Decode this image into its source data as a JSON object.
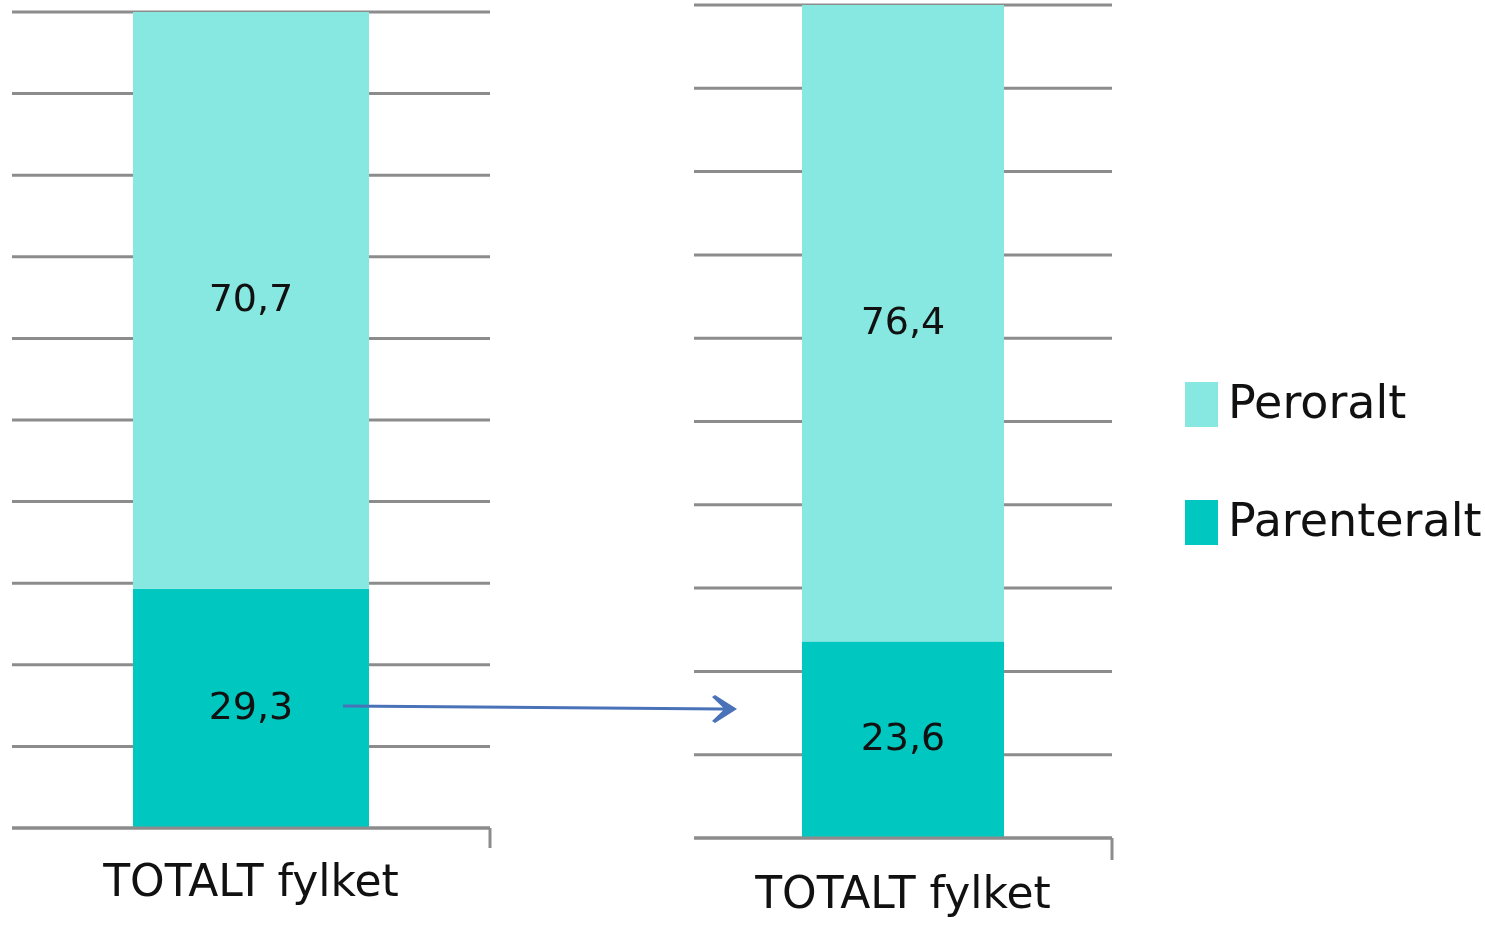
{
  "chart_data": [
    {
      "type": "bar",
      "stacked": true,
      "categories": [
        "TOTALT fylket"
      ],
      "series": [
        {
          "color": "#00c8c0",
          "values": [
            29.3
          ],
          "value_labels": [
            "29,3"
          ]
        },
        {
          "color": "#87e8e2",
          "values": [
            70.7
          ],
          "value_labels": [
            "70,7"
          ]
        }
      ],
      "grid": "y",
      "tick_labels": "x",
      "legend": false
    },
    {
      "type": "bar",
      "stacked": true,
      "categories": [
        "TOTALT fylket"
      ],
      "series": [
        {
          "name": "Parenteralt",
          "color": "#00c8c0",
          "values": [
            23.6
          ],
          "value_labels": [
            "23,6"
          ]
        },
        {
          "name": "Peroralt",
          "color": "#87e8e2",
          "values": [
            76.4
          ],
          "value_labels": [
            "76,4"
          ]
        }
      ],
      "grid": "y",
      "tick_labels": "x",
      "legend": "right"
    }
  ]
}
